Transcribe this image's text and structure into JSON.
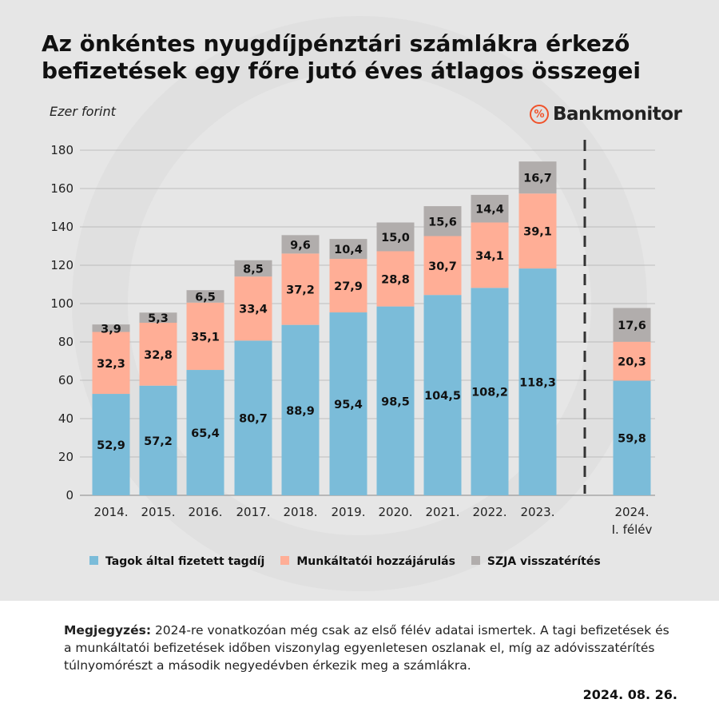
{
  "title": "Az önkéntes nyugdíjpénztári számlákra érkező befizetések egy főre jutó éves átlagos összegei",
  "logo": "Bankmonitor",
  "note_label": "Megjegyzés:",
  "note_text": " 2024-re vonatkozóan még csak az első félév adatai ismertek. A tagi befizetések és a munkáltatói befizetések időben viszonylag egyenletesen oszlanak el, míg az adóvisszatérítés túlnyomórészt a második negyedévben érkezik meg a számlákra.",
  "date": "2024. 08. 26.",
  "chart_data": {
    "type": "bar",
    "stacked": true,
    "ylabel": "Ezer forint",
    "ylim": [
      0,
      180
    ],
    "yticks": [
      0,
      20,
      40,
      60,
      80,
      100,
      120,
      140,
      160,
      180
    ],
    "grid": true,
    "legend": "bottom",
    "categories": [
      "2014.",
      "2015.",
      "2016.",
      "2017.",
      "2018.",
      "2019.",
      "2020.",
      "2021.",
      "2022.",
      "2023.",
      "2024.\nI. félév"
    ],
    "series": [
      {
        "name": "Tagok által fizetett tagdíj",
        "color": "#7bbcd9",
        "values": [
          52.9,
          57.2,
          65.4,
          80.7,
          88.9,
          95.4,
          98.5,
          104.5,
          108.2,
          118.3,
          59.8
        ]
      },
      {
        "name": "Munkáltatói hozzájárulás",
        "color": "#ffae96",
        "values": [
          32.3,
          32.8,
          35.1,
          33.4,
          37.2,
          27.9,
          28.8,
          30.7,
          34.1,
          39.1,
          20.3
        ]
      },
      {
        "name": "SZJA visszatérítés",
        "color": "#b1adac",
        "values": [
          3.9,
          5.3,
          6.5,
          8.5,
          9.6,
          10.4,
          15.0,
          15.6,
          14.4,
          16.7,
          17.6
        ]
      }
    ]
  }
}
